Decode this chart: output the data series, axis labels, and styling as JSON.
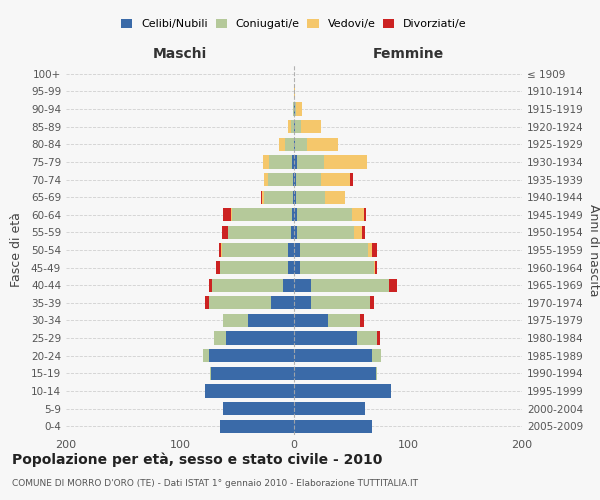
{
  "age_groups": [
    "0-4",
    "5-9",
    "10-14",
    "15-19",
    "20-24",
    "25-29",
    "30-34",
    "35-39",
    "40-44",
    "45-49",
    "50-54",
    "55-59",
    "60-64",
    "65-69",
    "70-74",
    "75-79",
    "80-84",
    "85-89",
    "90-94",
    "95-99",
    "100+"
  ],
  "birth_years": [
    "2005-2009",
    "2000-2004",
    "1995-1999",
    "1990-1994",
    "1985-1989",
    "1980-1984",
    "1975-1979",
    "1970-1974",
    "1965-1969",
    "1960-1964",
    "1955-1959",
    "1950-1954",
    "1945-1949",
    "1940-1944",
    "1935-1939",
    "1930-1934",
    "1925-1929",
    "1920-1924",
    "1915-1919",
    "1910-1914",
    "≤ 1909"
  ],
  "maschi": {
    "celibi": [
      65,
      62,
      78,
      73,
      75,
      60,
      40,
      20,
      10,
      5,
      5,
      3,
      2,
      1,
      1,
      2,
      0,
      0,
      0,
      0,
      0
    ],
    "coniugati": [
      0,
      0,
      0,
      1,
      5,
      10,
      22,
      55,
      62,
      60,
      58,
      55,
      52,
      25,
      22,
      20,
      8,
      3,
      1,
      0,
      0
    ],
    "vedovi": [
      0,
      0,
      0,
      0,
      0,
      0,
      0,
      0,
      0,
      0,
      1,
      0,
      1,
      2,
      3,
      5,
      5,
      2,
      0,
      0,
      0
    ],
    "divorziati": [
      0,
      0,
      0,
      0,
      0,
      0,
      0,
      3,
      3,
      3,
      2,
      5,
      7,
      1,
      0,
      0,
      0,
      0,
      0,
      0,
      0
    ]
  },
  "femmine": {
    "nubili": [
      68,
      62,
      85,
      72,
      68,
      55,
      30,
      15,
      15,
      5,
      5,
      3,
      3,
      2,
      2,
      3,
      1,
      1,
      1,
      0,
      0
    ],
    "coniugate": [
      0,
      0,
      0,
      1,
      8,
      18,
      28,
      52,
      68,
      65,
      60,
      50,
      48,
      25,
      22,
      23,
      10,
      5,
      1,
      0,
      0
    ],
    "vedove": [
      0,
      0,
      0,
      0,
      0,
      0,
      0,
      0,
      0,
      1,
      3,
      7,
      10,
      18,
      25,
      38,
      28,
      18,
      5,
      1,
      0
    ],
    "divorziate": [
      0,
      0,
      0,
      0,
      0,
      2,
      3,
      3,
      7,
      2,
      5,
      2,
      2,
      0,
      3,
      0,
      0,
      0,
      0,
      0,
      0
    ]
  },
  "colors": {
    "celibi": "#3a6aa8",
    "coniugati": "#b5c99a",
    "vedovi": "#f5c76b",
    "divorziati": "#cc2222"
  },
  "xlim": 200,
  "title": "Popolazione per età, sesso e stato civile - 2010",
  "subtitle": "COMUNE DI MORRO D'ORO (TE) - Dati ISTAT 1° gennaio 2010 - Elaborazione TUTTITALIA.IT",
  "ylabel_left": "Fasce di età",
  "ylabel_right": "Anni di nascita",
  "xlabel_maschi": "Maschi",
  "xlabel_femmine": "Femmine",
  "background_color": "#f7f7f7",
  "grid_color": "#cccccc"
}
